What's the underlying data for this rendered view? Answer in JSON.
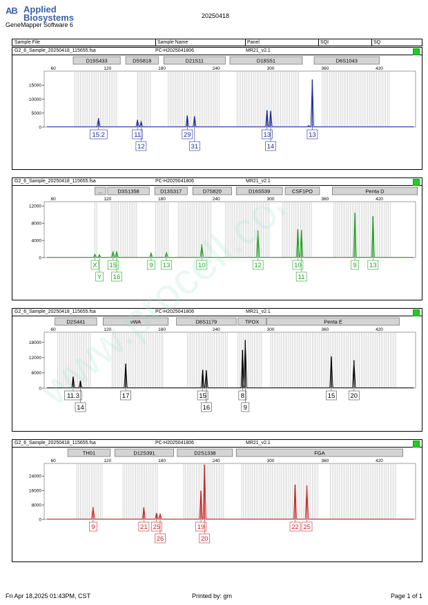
{
  "header": {
    "logo_line1": "Applied",
    "logo_line2": "Biosystems",
    "logo_mark": "AB",
    "software": "GeneMapper Software 6",
    "run_date": "20250418"
  },
  "columns": [
    "Sample File",
    "Sample Name",
    "Panel",
    "SQI",
    "SQ"
  ],
  "footer": {
    "left": "Fri Apr 18,2025 01:43PM, CST",
    "middle": "Printed by: gm",
    "right": "Page 1 of 1"
  },
  "watermark": "www.procell.com.cn",
  "chart_data": [
    {
      "type": "line",
      "sample_file": "G2_6_Sample_20250418_115655.fsa",
      "sample_name": "PC-H2025041806",
      "panel": "MR21_v2.1",
      "sq_color": "#22cc22",
      "color": "#1a2a9a",
      "xlim": [
        50,
        460
      ],
      "x_ticks": [
        60,
        120,
        180,
        240,
        300,
        360,
        420
      ],
      "ylim": [
        0,
        20000
      ],
      "y_ticks": [
        0,
        5000,
        10000,
        15000
      ],
      "markers": [
        {
          "name": "D19S433",
          "from": 82,
          "to": 134
        },
        {
          "name": "D5S818",
          "from": 140,
          "to": 176
        },
        {
          "name": "D21S11",
          "from": 182,
          "to": 250
        },
        {
          "name": "D18S51",
          "from": 255,
          "to": 335
        },
        {
          "name": "D6S1043",
          "from": 348,
          "to": 420
        }
      ],
      "bins": [
        [
          84,
          131
        ],
        [
          153,
          167
        ],
        [
          187,
          243
        ],
        [
          263,
          332
        ],
        [
          357,
          432
        ]
      ],
      "peaks": [
        {
          "x": 110,
          "h": 3200
        },
        {
          "x": 153,
          "h": 2600
        },
        {
          "x": 157,
          "h": 2000
        },
        {
          "x": 208,
          "h": 4100
        },
        {
          "x": 216,
          "h": 3800
        },
        {
          "x": 296,
          "h": 6000
        },
        {
          "x": 300,
          "h": 5800
        },
        {
          "x": 342,
          "h": 600
        },
        {
          "x": 346,
          "h": 17000
        }
      ],
      "labels": [
        {
          "x": 110,
          "text": "15.2",
          "row": 1
        },
        {
          "x": 153,
          "text": "11",
          "row": 1
        },
        {
          "x": 157,
          "text": "12",
          "row": 2
        },
        {
          "x": 208,
          "text": "29",
          "row": 1
        },
        {
          "x": 216,
          "text": "31",
          "row": 2
        },
        {
          "x": 296,
          "text": "13",
          "row": 1
        },
        {
          "x": 300,
          "text": "14",
          "row": 2
        },
        {
          "x": 346,
          "text": "13",
          "row": 1
        }
      ]
    },
    {
      "type": "line",
      "sample_file": "G2_6_Sample_20250418_115655.fsa",
      "sample_name": "PC-H2025041806",
      "panel": "MR21_v2.1",
      "sq_color": "#22cc22",
      "color": "#22a022",
      "xlim": [
        50,
        460
      ],
      "x_ticks": [
        60,
        120,
        180,
        240,
        300,
        360,
        420
      ],
      "ylim": [
        0,
        13000
      ],
      "y_ticks": [
        0,
        4000,
        8000,
        12000
      ],
      "markers": [
        {
          "name": "...",
          "from": 106,
          "to": 118
        },
        {
          "name": "D3S1358",
          "from": 120,
          "to": 166
        },
        {
          "name": "D13S317",
          "from": 172,
          "to": 208
        },
        {
          "name": "D7S820",
          "from": 214,
          "to": 257
        },
        {
          "name": "D16S539",
          "from": 262,
          "to": 313
        },
        {
          "name": "CSF1PO",
          "from": 316,
          "to": 354
        },
        {
          "name": "Penta D",
          "from": 368,
          "to": 462
        }
      ],
      "bins": [
        [
          106,
          108
        ],
        [
          124,
          152
        ],
        [
          173,
          187
        ],
        [
          198,
          235
        ],
        [
          250,
          298
        ],
        [
          313,
          345
        ],
        [
          370,
          432
        ]
      ],
      "peaks": [
        {
          "x": 106,
          "h": 800
        },
        {
          "x": 111,
          "h": 700
        },
        {
          "x": 126,
          "h": 1500
        },
        {
          "x": 130,
          "h": 1400
        },
        {
          "x": 168,
          "h": 1100
        },
        {
          "x": 185,
          "h": 1200
        },
        {
          "x": 224,
          "h": 3100
        },
        {
          "x": 286,
          "h": 6300
        },
        {
          "x": 330,
          "h": 6600
        },
        {
          "x": 334,
          "h": 6400
        },
        {
          "x": 393,
          "h": 10400
        },
        {
          "x": 413,
          "h": 9600
        }
      ],
      "labels": [
        {
          "x": 106,
          "text": "X",
          "row": 1
        },
        {
          "x": 111,
          "text": "Y",
          "row": 2
        },
        {
          "x": 126,
          "text": "15",
          "row": 1
        },
        {
          "x": 130,
          "text": "16",
          "row": 2
        },
        {
          "x": 168,
          "text": "9",
          "row": 1
        },
        {
          "x": 185,
          "text": "13",
          "row": 1
        },
        {
          "x": 224,
          "text": "10",
          "row": 1
        },
        {
          "x": 286,
          "text": "12",
          "row": 1
        },
        {
          "x": 330,
          "text": "10",
          "row": 1
        },
        {
          "x": 334,
          "text": "11",
          "row": 2
        },
        {
          "x": 393,
          "text": "9",
          "row": 1
        },
        {
          "x": 413,
          "text": "13",
          "row": 1
        }
      ]
    },
    {
      "type": "line",
      "sample_file": "G2_6_Sample_20250418_115655.fsa",
      "sample_name": "PC-H2025041806",
      "panel": "MR21_v2.1",
      "sq_color": "#22cc22",
      "color": "#000000",
      "xlim": [
        50,
        460
      ],
      "x_ticks": [
        60,
        120,
        180,
        240,
        300,
        360,
        420
      ],
      "ylim": [
        0,
        22000
      ],
      "y_ticks": [
        0,
        6000,
        12000,
        18000
      ],
      "markers": [
        {
          "name": "D2S441",
          "from": 62,
          "to": 108
        },
        {
          "name": "vWA",
          "from": 115,
          "to": 187
        },
        {
          "name": "D8S1179",
          "from": 196,
          "to": 262
        },
        {
          "name": "TPOX",
          "from": 264,
          "to": 295
        },
        {
          "name": "Penta E",
          "from": 296,
          "to": 442
        }
      ],
      "bins": [
        [
          65,
          101
        ],
        [
          125,
          181
        ],
        [
          208,
          252
        ],
        [
          264,
          290
        ],
        [
          300,
          438
        ]
      ],
      "peaks": [
        {
          "x": 82,
          "h": 4500
        },
        {
          "x": 90,
          "h": 2900
        },
        {
          "x": 140,
          "h": 9600
        },
        {
          "x": 225,
          "h": 7200
        },
        {
          "x": 229,
          "h": 7000
        },
        {
          "x": 269,
          "h": 15000
        },
        {
          "x": 272,
          "h": 18900
        },
        {
          "x": 367,
          "h": 12500
        },
        {
          "x": 392,
          "h": 11000
        }
      ],
      "labels": [
        {
          "x": 82,
          "text": "11.3",
          "row": 1
        },
        {
          "x": 90,
          "text": "14",
          "row": 2
        },
        {
          "x": 140,
          "text": "17",
          "row": 1
        },
        {
          "x": 225,
          "text": "15",
          "row": 1
        },
        {
          "x": 229,
          "text": "16",
          "row": 2
        },
        {
          "x": 269,
          "text": "8",
          "row": 1
        },
        {
          "x": 272,
          "text": "9",
          "row": 2
        },
        {
          "x": 367,
          "text": "15",
          "row": 1
        },
        {
          "x": 392,
          "text": "20",
          "row": 1
        }
      ]
    },
    {
      "type": "line",
      "sample_file": "G2_6_Sample_20250418_115655.fsa",
      "sample_name": "PC-H2025041806",
      "panel": "MR21_v2.1",
      "sq_color": "#22cc22",
      "color": "#cc2222",
      "xlim": [
        50,
        460
      ],
      "x_ticks": [
        60,
        120,
        180,
        240,
        300,
        360,
        420
      ],
      "ylim": [
        0,
        31000
      ],
      "y_ticks": [
        0,
        8000,
        16000,
        24000
      ],
      "markers": [
        {
          "name": "TH01",
          "from": 76,
          "to": 123
        },
        {
          "name": "D12S391",
          "from": 128,
          "to": 193
        },
        {
          "name": "D2S1338",
          "from": 197,
          "to": 258
        },
        {
          "name": "FGA",
          "from": 262,
          "to": 446
        }
      ],
      "bins": [
        [
          86,
          114
        ],
        [
          137,
          175
        ],
        [
          204,
          249
        ],
        [
          268,
          352
        ],
        [
          366,
          438
        ]
      ],
      "peaks": [
        {
          "x": 104,
          "h": 6800
        },
        {
          "x": 160,
          "h": 6600
        },
        {
          "x": 174,
          "h": 3500
        },
        {
          "x": 178,
          "h": 3000
        },
        {
          "x": 223,
          "h": 15900
        },
        {
          "x": 227,
          "h": 30300
        },
        {
          "x": 327,
          "h": 19200
        },
        {
          "x": 340,
          "h": 18800
        }
      ],
      "labels": [
        {
          "x": 104,
          "text": "9",
          "row": 1
        },
        {
          "x": 160,
          "text": "21",
          "row": 1
        },
        {
          "x": 174,
          "text": "25",
          "row": 1
        },
        {
          "x": 178,
          "text": "26",
          "row": 2
        },
        {
          "x": 223,
          "text": "19",
          "row": 1
        },
        {
          "x": 227,
          "text": "20",
          "row": 2
        },
        {
          "x": 327,
          "text": "22",
          "row": 1
        },
        {
          "x": 340,
          "text": "25",
          "row": 1
        }
      ]
    }
  ]
}
